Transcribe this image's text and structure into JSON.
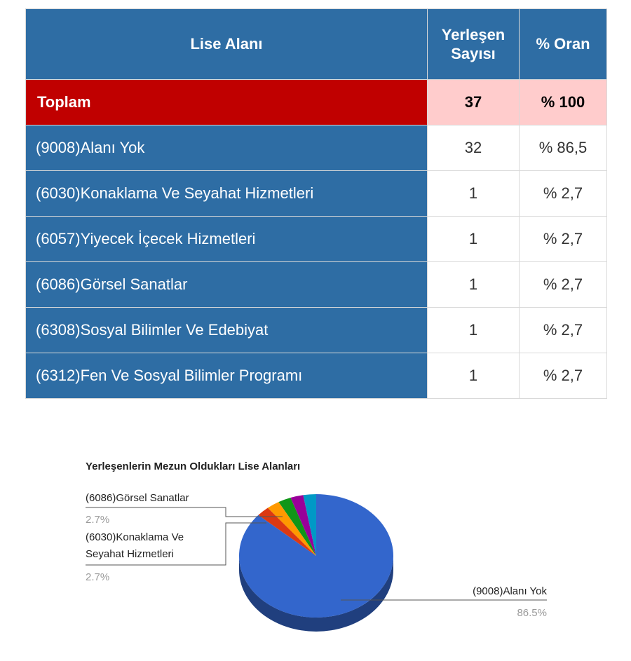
{
  "table": {
    "headers": {
      "area": "Lise Alanı",
      "count_line1": "Yerleşen",
      "count_line2": "Sayısı",
      "ratio": "% Oran"
    },
    "total": {
      "label": "Toplam",
      "count": "37",
      "ratio": "% 100"
    },
    "rows": [
      {
        "label": "(9008)Alanı Yok",
        "count": "32",
        "ratio": "% 86,5"
      },
      {
        "label": "(6030)Konaklama Ve Seyahat Hizmetleri",
        "count": "1",
        "ratio": "% 2,7"
      },
      {
        "label": "(6057)Yiyecek İçecek Hizmetleri",
        "count": "1",
        "ratio": "% 2,7"
      },
      {
        "label": "(6086)Görsel Sanatlar",
        "count": "1",
        "ratio": "% 2,7"
      },
      {
        "label": "(6308)Sosyal Bilimler Ve Edebiyat",
        "count": "1",
        "ratio": "% 2,7"
      },
      {
        "label": "(6312)Fen Ve Sosyal Bilimler Programı",
        "count": "1",
        "ratio": "% 2,7"
      }
    ]
  },
  "colors": {
    "header_bg": "#2e6da4",
    "total_label_bg": "#c00000",
    "total_value_bg": "#ffcccc"
  },
  "chart_data": {
    "type": "pie",
    "title": "Yerleşenlerin Mezun Oldukları Lise Alanları",
    "is_3d": true,
    "slices": [
      {
        "label": "(9008)Alanı Yok",
        "value": 86.5,
        "pct_label": "86.5%",
        "color": "#3366cc",
        "labeled": true
      },
      {
        "label": "(6030)Konaklama Ve Seyahat Hizmetleri",
        "value": 2.7,
        "pct_label": "2.7%",
        "color": "#dc3912",
        "labeled": true
      },
      {
        "label": "(6057)Yiyecek İçecek Hizmetleri",
        "value": 2.7,
        "pct_label": "2.7%",
        "color": "#ff9900",
        "labeled": false
      },
      {
        "label": "(6086)Görsel Sanatlar",
        "value": 2.7,
        "pct_label": "2.7%",
        "color": "#109618",
        "labeled": true
      },
      {
        "label": "(6308)Sosyal Bilimler Ve Edebiyat",
        "value": 2.7,
        "pct_label": "2.7%",
        "color": "#990099",
        "labeled": false
      },
      {
        "label": "(6312)Fen Ve Sosyal Bilimler Programı",
        "value": 2.7,
        "pct_label": "2.7%",
        "color": "#0099c6",
        "labeled": false
      }
    ],
    "label_texts": {
      "s6086_line1": "(6086)Görsel Sanatlar",
      "s6086_pct": "2.7%",
      "s6030_line1": "(6030)Konaklama Ve",
      "s6030_line2": "Seyahat Hizmetleri",
      "s6030_pct": "2.7%",
      "s9008_line1": "(9008)Alanı Yok",
      "s9008_pct": "86.5%"
    }
  }
}
